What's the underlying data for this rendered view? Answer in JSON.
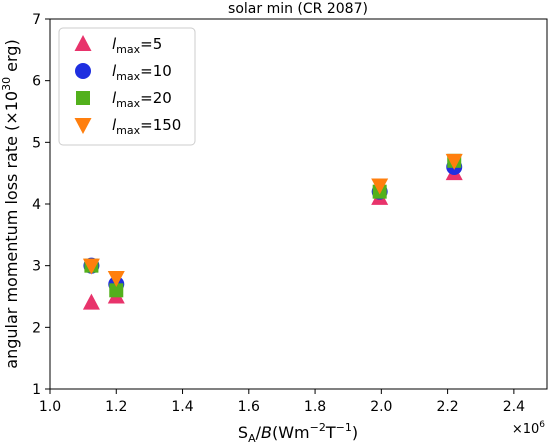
{
  "chart_data": {
    "type": "scatter",
    "title": "solar min (CR 2087)",
    "xlabel": "S_A/B(Wm^-2T^-1)",
    "ylabel": "angular momentum loss rate (×10^30 erg)",
    "x_offset_label": "×10^6",
    "xlim": [
      1.0,
      2.5
    ],
    "ylim": [
      1,
      7
    ],
    "x_ticks": [
      1.0,
      1.2,
      1.4,
      1.6,
      1.8,
      2.0,
      2.2,
      2.4
    ],
    "x_tick_labels": [
      "1.0",
      "1.2",
      "1.4",
      "1.6",
      "1.8",
      "2.0",
      "2.2",
      "2.4"
    ],
    "y_ticks": [
      1,
      2,
      3,
      4,
      5,
      6,
      7
    ],
    "y_tick_labels": [
      "1",
      "2",
      "3",
      "4",
      "5",
      "6",
      "7"
    ],
    "grid": false,
    "legend_position": "top-left",
    "series": [
      {
        "name": "l_max=5",
        "legend_sub": "max",
        "legend_rest": "=5",
        "marker": "triangle-up",
        "color": "#e8336b",
        "x": [
          1.125,
          1.2,
          1.995,
          2.22
        ],
        "y": [
          2.4,
          2.5,
          4.1,
          4.5
        ]
      },
      {
        "name": "l_max=10",
        "legend_sub": "max",
        "legend_rest": "=10",
        "marker": "circle",
        "color": "#1f2fe0",
        "x": [
          1.125,
          1.2,
          1.995,
          2.22
        ],
        "y": [
          3.0,
          2.7,
          4.2,
          4.6
        ]
      },
      {
        "name": "l_max=20",
        "legend_sub": "max",
        "legend_rest": "=20",
        "marker": "square",
        "color": "#52b01c",
        "x": [
          1.125,
          1.2,
          1.995,
          2.22
        ],
        "y": [
          3.0,
          2.6,
          4.2,
          4.7
        ]
      },
      {
        "name": "l_max=150",
        "legend_sub": "max",
        "legend_rest": "=150",
        "marker": "triangle-down",
        "color": "#ff7f0e",
        "x": [
          1.125,
          1.2,
          1.995,
          2.22
        ],
        "y": [
          3.0,
          2.8,
          4.3,
          4.7
        ]
      }
    ]
  }
}
